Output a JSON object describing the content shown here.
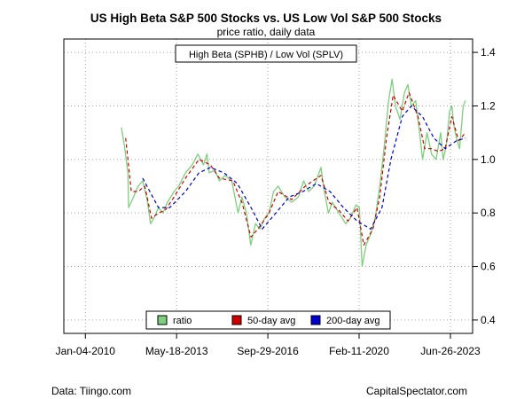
{
  "chart_data": {
    "type": "line",
    "title": "US High Beta S&P 500 Stocks vs. US Low Vol S&P 500 Stocks",
    "subtitle": "price ratio, daily data",
    "annotation": "High Beta (SPHB) / Low Vol (SPLV)",
    "x_tick_labels": [
      "Jan-04-2010",
      "May-18-2013",
      "Sep-29-2016",
      "Feb-11-2020",
      "Jun-26-2023"
    ],
    "x_tick_dates": [
      "2010-01-04",
      "2013-05-18",
      "2016-09-29",
      "2020-02-11",
      "2023-06-26"
    ],
    "xlim": [
      "2009-03-20",
      "2024-04-20"
    ],
    "y_ticks": [
      0.4,
      0.6,
      0.8,
      1.0,
      1.2,
      1.4
    ],
    "y_tick_labels": [
      "0.4",
      "0.6",
      "0.8",
      "1.0",
      "1.2",
      "1.4"
    ],
    "ylim": [
      0.35,
      1.45
    ],
    "y_axis_side": "right",
    "grid": true,
    "legend_position": "bottom-center",
    "series": [
      {
        "name": "ratio",
        "color": "#7ccf7c",
        "style": "solid",
        "points": [
          [
            "2011-05-05",
            1.12
          ],
          [
            "2011-06-15",
            1.05
          ],
          [
            "2011-08-01",
            0.95
          ],
          [
            "2011-08-10",
            0.82
          ],
          [
            "2011-09-30",
            0.85
          ],
          [
            "2011-12-15",
            0.9
          ],
          [
            "2012-02-15",
            0.92
          ],
          [
            "2012-04-15",
            0.85
          ],
          [
            "2012-06-01",
            0.76
          ],
          [
            "2012-07-15",
            0.78
          ],
          [
            "2012-09-15",
            0.82
          ],
          [
            "2012-11-15",
            0.8
          ],
          [
            "2013-01-15",
            0.84
          ],
          [
            "2013-04-15",
            0.88
          ],
          [
            "2013-06-15",
            0.9
          ],
          [
            "2013-09-15",
            0.95
          ],
          [
            "2013-12-15",
            0.98
          ],
          [
            "2014-03-01",
            1.02
          ],
          [
            "2014-05-15",
            0.98
          ],
          [
            "2014-07-01",
            1.02
          ],
          [
            "2014-08-01",
            0.95
          ],
          [
            "2014-10-15",
            0.96
          ],
          [
            "2014-12-15",
            0.92
          ],
          [
            "2015-03-01",
            0.94
          ],
          [
            "2015-06-01",
            0.92
          ],
          [
            "2015-08-25",
            0.8
          ],
          [
            "2015-10-15",
            0.86
          ],
          [
            "2015-12-15",
            0.8
          ],
          [
            "2016-02-11",
            0.68
          ],
          [
            "2016-04-15",
            0.76
          ],
          [
            "2016-06-15",
            0.74
          ],
          [
            "2016-08-15",
            0.78
          ],
          [
            "2016-10-15",
            0.8
          ],
          [
            "2016-12-15",
            0.88
          ],
          [
            "2017-02-15",
            0.9
          ],
          [
            "2017-05-15",
            0.86
          ],
          [
            "2017-08-15",
            0.84
          ],
          [
            "2017-11-15",
            0.86
          ],
          [
            "2018-01-25",
            0.92
          ],
          [
            "2018-04-01",
            0.88
          ],
          [
            "2018-06-15",
            0.9
          ],
          [
            "2018-09-15",
            0.97
          ],
          [
            "2018-10-30",
            0.88
          ],
          [
            "2018-12-24",
            0.8
          ],
          [
            "2019-02-15",
            0.84
          ],
          [
            "2019-05-15",
            0.8
          ],
          [
            "2019-08-15",
            0.76
          ],
          [
            "2019-10-15",
            0.78
          ],
          [
            "2019-12-31",
            0.83
          ],
          [
            "2020-02-15",
            0.82
          ],
          [
            "2020-03-23",
            0.6
          ],
          [
            "2020-05-15",
            0.68
          ],
          [
            "2020-07-15",
            0.72
          ],
          [
            "2020-09-15",
            0.78
          ],
          [
            "2020-11-15",
            0.9
          ],
          [
            "2021-01-15",
            1.05
          ],
          [
            "2021-03-15",
            1.22
          ],
          [
            "2021-05-01",
            1.3
          ],
          [
            "2021-06-15",
            1.2
          ],
          [
            "2021-08-15",
            1.15
          ],
          [
            "2021-10-15",
            1.25
          ],
          [
            "2021-12-01",
            1.28
          ],
          [
            "2022-01-15",
            1.2
          ],
          [
            "2022-03-15",
            1.22
          ],
          [
            "2022-05-15",
            1.08
          ],
          [
            "2022-06-16",
            1.0
          ],
          [
            "2022-08-15",
            1.1
          ],
          [
            "2022-10-15",
            1.02
          ],
          [
            "2022-12-15",
            1.0
          ],
          [
            "2023-02-15",
            1.1
          ],
          [
            "2023-03-20",
            1.0
          ],
          [
            "2023-05-01",
            1.05
          ],
          [
            "2023-06-15",
            1.18
          ],
          [
            "2023-07-15",
            1.2
          ],
          [
            "2023-08-15",
            1.12
          ],
          [
            "2023-09-15",
            1.08
          ],
          [
            "2023-10-27",
            1.04
          ],
          [
            "2023-12-15",
            1.2
          ],
          [
            "2024-01-15",
            1.22
          ]
        ]
      },
      {
        "name": "50-day avg",
        "color": "#cc0000",
        "style": "dashed",
        "points": [
          [
            "2011-07-01",
            1.08
          ],
          [
            "2011-09-15",
            0.88
          ],
          [
            "2011-12-15",
            0.88
          ],
          [
            "2012-03-15",
            0.9
          ],
          [
            "2012-06-15",
            0.78
          ],
          [
            "2012-09-15",
            0.8
          ],
          [
            "2012-12-15",
            0.81
          ],
          [
            "2013-04-15",
            0.86
          ],
          [
            "2013-09-15",
            0.93
          ],
          [
            "2014-03-15",
            1.0
          ],
          [
            "2014-08-15",
            0.98
          ],
          [
            "2014-12-15",
            0.93
          ],
          [
            "2015-06-15",
            0.92
          ],
          [
            "2015-10-15",
            0.84
          ],
          [
            "2016-02-15",
            0.71
          ],
          [
            "2016-06-15",
            0.75
          ],
          [
            "2016-10-15",
            0.8
          ],
          [
            "2017-02-15",
            0.88
          ],
          [
            "2017-08-15",
            0.85
          ],
          [
            "2018-02-15",
            0.9
          ],
          [
            "2018-09-15",
            0.94
          ],
          [
            "2018-12-31",
            0.84
          ],
          [
            "2019-05-15",
            0.81
          ],
          [
            "2019-09-15",
            0.77
          ],
          [
            "2020-01-15",
            0.82
          ],
          [
            "2020-04-15",
            0.68
          ],
          [
            "2020-08-15",
            0.74
          ],
          [
            "2020-11-15",
            0.86
          ],
          [
            "2021-02-15",
            1.08
          ],
          [
            "2021-05-15",
            1.24
          ],
          [
            "2021-09-15",
            1.18
          ],
          [
            "2021-12-15",
            1.25
          ],
          [
            "2022-04-15",
            1.16
          ],
          [
            "2022-07-15",
            1.04
          ],
          [
            "2022-10-15",
            1.04
          ],
          [
            "2023-01-15",
            1.03
          ],
          [
            "2023-04-15",
            1.04
          ],
          [
            "2023-07-15",
            1.16
          ],
          [
            "2023-10-15",
            1.07
          ],
          [
            "2024-01-15",
            1.1
          ]
        ]
      },
      {
        "name": "200-day avg",
        "color": "#0000cc",
        "style": "dashed",
        "points": [
          [
            "2012-02-15",
            0.93
          ],
          [
            "2012-09-15",
            0.82
          ],
          [
            "2013-02-15",
            0.82
          ],
          [
            "2013-09-15",
            0.88
          ],
          [
            "2014-03-15",
            0.95
          ],
          [
            "2014-08-15",
            0.97
          ],
          [
            "2015-02-15",
            0.95
          ],
          [
            "2015-08-15",
            0.91
          ],
          [
            "2016-02-15",
            0.82
          ],
          [
            "2016-07-15",
            0.74
          ],
          [
            "2017-01-15",
            0.8
          ],
          [
            "2017-07-15",
            0.86
          ],
          [
            "2018-01-15",
            0.88
          ],
          [
            "2018-07-15",
            0.91
          ],
          [
            "2019-01-15",
            0.88
          ],
          [
            "2019-07-15",
            0.82
          ],
          [
            "2020-01-15",
            0.77
          ],
          [
            "2020-07-15",
            0.74
          ],
          [
            "2020-12-15",
            0.82
          ],
          [
            "2021-04-15",
            1.0
          ],
          [
            "2021-09-15",
            1.16
          ],
          [
            "2022-01-15",
            1.2
          ],
          [
            "2022-06-15",
            1.16
          ],
          [
            "2022-11-15",
            1.08
          ],
          [
            "2023-04-15",
            1.04
          ],
          [
            "2023-09-15",
            1.07
          ],
          [
            "2024-01-15",
            1.08
          ]
        ]
      }
    ]
  },
  "footer": {
    "source": "Data: Tiingo.com",
    "credit": "CapitalSpectator.com"
  }
}
